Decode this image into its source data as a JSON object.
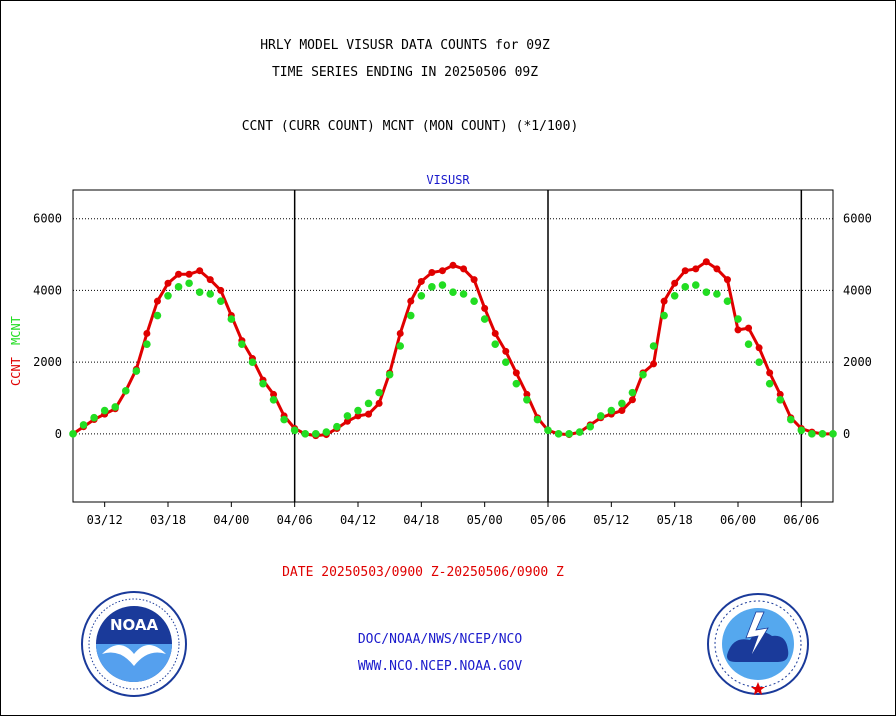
{
  "chart_data": {
    "type": "line",
    "title": "HRLY MODEL VISUSR DATA COUNTS for 09Z",
    "title_line2": "TIME SERIES ENDING IN 20250506 09Z",
    "subtitle": "CCNT (CURR COUNT) MCNT (MON COUNT) (*1/100)",
    "plot_title": "VISUSR",
    "xlabel": "DATE 20250503/0900 Z-20250506/0900 Z",
    "ylabel_parts": [
      {
        "text": "CCNT",
        "color": "#e00000"
      },
      {
        "text": "MCNT",
        "color": "#22dd22"
      }
    ],
    "ylim": [
      -1900,
      6800
    ],
    "yticks": [
      0,
      2000,
      4000,
      6000
    ],
    "grid": true,
    "x_unit": "hours",
    "xlim": [
      -33,
      39
    ],
    "xticks": [
      {
        "x": -30,
        "label": "03/12"
      },
      {
        "x": -24,
        "label": "03/18"
      },
      {
        "x": -18,
        "label": "04/00"
      },
      {
        "x": -12,
        "label": "04/06"
      },
      {
        "x": -6,
        "label": "04/12"
      },
      {
        "x": 0,
        "label": "04/18"
      },
      {
        "x": 6,
        "label": "05/00"
      },
      {
        "x": 12,
        "label": "05/06"
      },
      {
        "x": 18,
        "label": "05/12"
      },
      {
        "x": 24,
        "label": "05/18"
      },
      {
        "x": 30,
        "label": "06/00"
      },
      {
        "x": 36,
        "label": "06/06"
      }
    ],
    "day_separators": [
      -12,
      12,
      36
    ],
    "series": [
      {
        "name": "CCNT",
        "color": "#e00000",
        "points": [
          [
            -33,
            0
          ],
          [
            -32,
            200
          ],
          [
            -31,
            400
          ],
          [
            -30,
            550
          ],
          [
            -29,
            700
          ],
          [
            -28,
            1200
          ],
          [
            -27,
            1800
          ],
          [
            -26,
            2800
          ],
          [
            -25,
            3700
          ],
          [
            -24,
            4200
          ],
          [
            -23,
            4450
          ],
          [
            -22,
            4450
          ],
          [
            -21,
            4550
          ],
          [
            -20,
            4300
          ],
          [
            -19,
            4000
          ],
          [
            -18,
            3300
          ],
          [
            -17,
            2600
          ],
          [
            -16,
            2100
          ],
          [
            -15,
            1500
          ],
          [
            -14,
            1100
          ],
          [
            -13,
            500
          ],
          [
            -12,
            150
          ],
          [
            -11,
            0
          ],
          [
            -10,
            -50
          ],
          [
            -9,
            -20
          ],
          [
            -8,
            150
          ],
          [
            -7,
            350
          ],
          [
            -6,
            500
          ],
          [
            -5,
            550
          ],
          [
            -4,
            850
          ],
          [
            -3,
            1700
          ],
          [
            -2,
            2800
          ],
          [
            -1,
            3700
          ],
          [
            0,
            4250
          ],
          [
            1,
            4500
          ],
          [
            2,
            4550
          ],
          [
            3,
            4700
          ],
          [
            4,
            4600
          ],
          [
            5,
            4300
          ],
          [
            6,
            3500
          ],
          [
            7,
            2800
          ],
          [
            8,
            2300
          ],
          [
            9,
            1700
          ],
          [
            10,
            1100
          ],
          [
            11,
            450
          ],
          [
            12,
            100
          ],
          [
            13,
            0
          ],
          [
            14,
            -20
          ],
          [
            15,
            50
          ],
          [
            16,
            250
          ],
          [
            17,
            450
          ],
          [
            18,
            550
          ],
          [
            19,
            650
          ],
          [
            20,
            950
          ],
          [
            21,
            1700
          ],
          [
            22,
            1950
          ],
          [
            23,
            3700
          ],
          [
            24,
            4200
          ],
          [
            25,
            4550
          ],
          [
            26,
            4600
          ],
          [
            27,
            4800
          ],
          [
            28,
            4600
          ],
          [
            29,
            4300
          ],
          [
            30,
            2900
          ],
          [
            31,
            2950
          ],
          [
            32,
            2400
          ],
          [
            33,
            1700
          ],
          [
            34,
            1100
          ],
          [
            35,
            450
          ],
          [
            36,
            150
          ],
          [
            37,
            50
          ],
          [
            38,
            0
          ],
          [
            39,
            0
          ]
        ]
      },
      {
        "name": "MCNT",
        "color": "#22dd22",
        "points": [
          [
            -33,
            0
          ],
          [
            -32,
            250
          ],
          [
            -31,
            450
          ],
          [
            -30,
            650
          ],
          [
            -29,
            750
          ],
          [
            -28,
            1200
          ],
          [
            -27,
            1750
          ],
          [
            -26,
            2500
          ],
          [
            -25,
            3300
          ],
          [
            -24,
            3850
          ],
          [
            -23,
            4100
          ],
          [
            -22,
            4200
          ],
          [
            -21,
            3950
          ],
          [
            -20,
            3900
          ],
          [
            -19,
            3700
          ],
          [
            -18,
            3200
          ],
          [
            -17,
            2500
          ],
          [
            -16,
            2000
          ],
          [
            -15,
            1400
          ],
          [
            -14,
            950
          ],
          [
            -13,
            400
          ],
          [
            -12,
            100
          ],
          [
            -11,
            0
          ],
          [
            -10,
            0
          ],
          [
            -9,
            50
          ],
          [
            -8,
            200
          ],
          [
            -7,
            500
          ],
          [
            -6,
            650
          ],
          [
            -5,
            850
          ],
          [
            -4,
            1150
          ],
          [
            -3,
            1650
          ],
          [
            -2,
            2450
          ],
          [
            -1,
            3300
          ],
          [
            0,
            3850
          ],
          [
            1,
            4100
          ],
          [
            2,
            4150
          ],
          [
            3,
            3950
          ],
          [
            4,
            3900
          ],
          [
            5,
            3700
          ],
          [
            6,
            3200
          ],
          [
            7,
            2500
          ],
          [
            8,
            2000
          ],
          [
            9,
            1400
          ],
          [
            10,
            950
          ],
          [
            11,
            400
          ],
          [
            12,
            100
          ],
          [
            13,
            0
          ],
          [
            14,
            0
          ],
          [
            15,
            50
          ],
          [
            16,
            200
          ],
          [
            17,
            500
          ],
          [
            18,
            650
          ],
          [
            19,
            850
          ],
          [
            20,
            1150
          ],
          [
            21,
            1650
          ],
          [
            22,
            2450
          ],
          [
            23,
            3300
          ],
          [
            24,
            3850
          ],
          [
            25,
            4100
          ],
          [
            26,
            4150
          ],
          [
            27,
            3950
          ],
          [
            28,
            3900
          ],
          [
            29,
            3700
          ],
          [
            30,
            3200
          ],
          [
            31,
            2500
          ],
          [
            32,
            2000
          ],
          [
            33,
            1400
          ],
          [
            34,
            950
          ],
          [
            35,
            400
          ],
          [
            36,
            100
          ],
          [
            37,
            0
          ],
          [
            38,
            0
          ],
          [
            39,
            0
          ]
        ]
      }
    ]
  },
  "footer": {
    "org": "DOC/NOAA/NWS/NCEP/NCO",
    "url": "WWW.NCO.NCEP.NOAA.GOV"
  },
  "colors": {
    "ccnt": "#e00000",
    "mcnt": "#22dd22",
    "text_blue": "#1a1acc",
    "grid": "#000000"
  }
}
